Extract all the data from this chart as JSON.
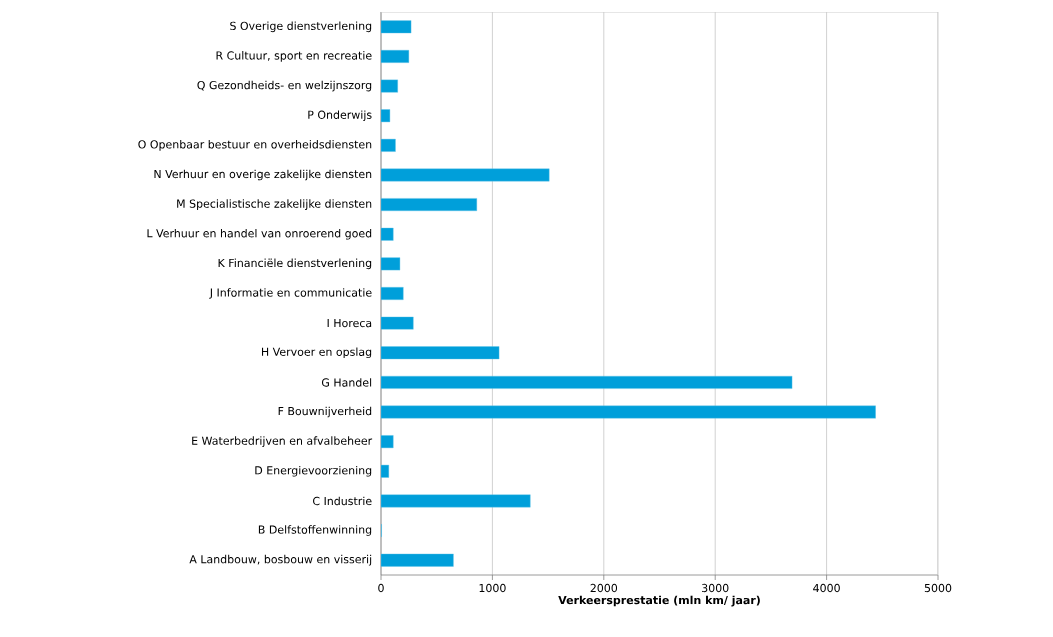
{
  "chart_data": {
    "type": "bar",
    "orientation": "horizontal",
    "xlabel": "**Verkeersprestatie (mln km/ jaar)**",
    "categories": [
      "S Overige dienstverlening",
      "R Cultuur, sport en recreatie",
      "Q Gezondheids- en welzijnszorg",
      "P Onderwijs",
      "O Openbaar bestuur en overheidsdiensten",
      "N Verhuur en overige zakelijke diensten",
      "M Specialistische zakelijke diensten",
      "L Verhuur en handel van onroerend goed",
      "K Financiële dienstverlening",
      "J Informatie en communicatie",
      "I Horeca",
      "H Vervoer en opslag",
      "G Handel",
      "F Bouwnijverheid",
      "E Waterbedrijven en afvalbeheer",
      "D Energievoorziening",
      "C Industrie",
      "B Delfstoffenwinning",
      "A Landbouw, bosbouw en visserij"
    ],
    "values": [
      270,
      250,
      150,
      80,
      130,
      1510,
      860,
      110,
      170,
      200,
      290,
      1060,
      3690,
      4440,
      110,
      70,
      1340,
      5,
      650
    ],
    "color": "#009fda",
    "xlim": [
      0,
      5000
    ],
    "xticks": [
      0,
      1000,
      2000,
      3000,
      4000,
      5000
    ],
    "grid": "x"
  }
}
